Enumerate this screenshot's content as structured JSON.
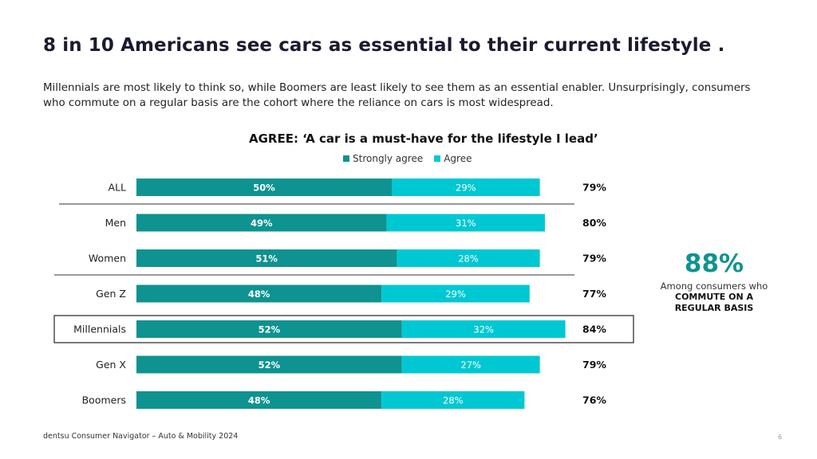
{
  "header": {
    "title": "8 in 10 Americans see cars as essential to their current lifestyle .",
    "subtitle": "Millennials are most likely to think so, while Boomers are least likely to see them as an essential enabler. Unsurprisingly, consumers who commute on a regular basis are the cohort where the reliance on cars is most widespread."
  },
  "chart_data": {
    "type": "bar",
    "orientation": "horizontal",
    "stacked": true,
    "title": "AGREE: ‘A car is a must-have for the lifestyle I lead’",
    "categories": [
      "ALL",
      "Men",
      "Women",
      "Gen Z",
      "Millennials",
      "Gen X",
      "Boomers"
    ],
    "series": [
      {
        "name": "Strongly agree",
        "values": [
          50,
          49,
          51,
          48,
          52,
          52,
          48
        ],
        "color": "#0e9390"
      },
      {
        "name": "Agree",
        "values": [
          29,
          31,
          28,
          29,
          32,
          27,
          28
        ],
        "color": "#00c8d2"
      }
    ],
    "totals": [
      "79%",
      "80%",
      "79%",
      "77%",
      "84%",
      "79%",
      "76%"
    ],
    "highlighted_category": "Millennials",
    "xlim": [
      0,
      100
    ],
    "legend_position": "top-center"
  },
  "legend": {
    "strong_label": "Strongly agree",
    "agree_label": "Agree"
  },
  "callout": {
    "value": "88%",
    "line1": "Among consumers who",
    "line2a": "COMMUTE ON A",
    "line2b": "REGULAR BASIS"
  },
  "footer": {
    "source": "dentsu Consumer Navigator – Auto & Mobility 2024",
    "page_number": "6"
  },
  "colors": {
    "strong": "#0e9390",
    "agree": "#00c8d2",
    "title": "#1b1b2f"
  }
}
